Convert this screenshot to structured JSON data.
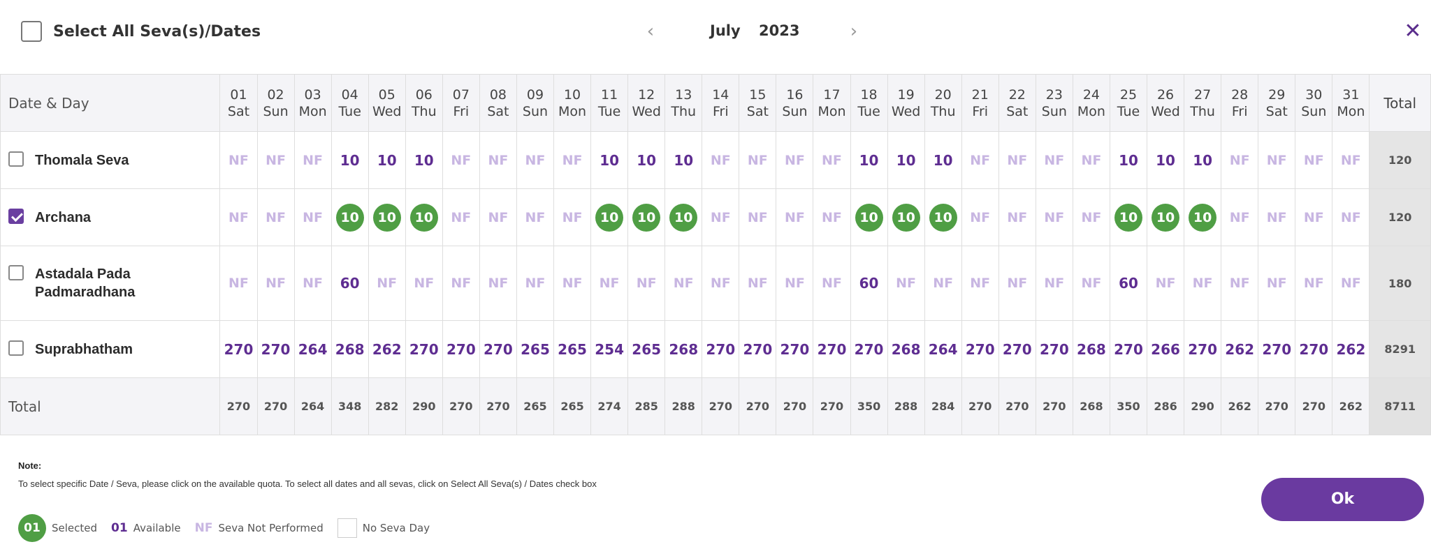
{
  "header": {
    "select_all_label": "Select All Seva(s)/Dates",
    "month": "July",
    "year": "2023",
    "prev_icon": "chevron-left-icon",
    "next_icon": "chevron-right-icon",
    "close_icon": "close-icon"
  },
  "table": {
    "date_day_header": "Date & Day",
    "total_header": "Total",
    "total_row_label": "Total",
    "days": [
      {
        "date": "01",
        "day": "Sat"
      },
      {
        "date": "02",
        "day": "Sun"
      },
      {
        "date": "03",
        "day": "Mon"
      },
      {
        "date": "04",
        "day": "Tue"
      },
      {
        "date": "05",
        "day": "Wed"
      },
      {
        "date": "06",
        "day": "Thu"
      },
      {
        "date": "07",
        "day": "Fri"
      },
      {
        "date": "08",
        "day": "Sat"
      },
      {
        "date": "09",
        "day": "Sun"
      },
      {
        "date": "10",
        "day": "Mon"
      },
      {
        "date": "11",
        "day": "Tue"
      },
      {
        "date": "12",
        "day": "Wed"
      },
      {
        "date": "13",
        "day": "Thu"
      },
      {
        "date": "14",
        "day": "Fri"
      },
      {
        "date": "15",
        "day": "Sat"
      },
      {
        "date": "16",
        "day": "Sun"
      },
      {
        "date": "17",
        "day": "Mon"
      },
      {
        "date": "18",
        "day": "Tue"
      },
      {
        "date": "19",
        "day": "Wed"
      },
      {
        "date": "20",
        "day": "Thu"
      },
      {
        "date": "21",
        "day": "Fri"
      },
      {
        "date": "22",
        "day": "Sat"
      },
      {
        "date": "23",
        "day": "Sun"
      },
      {
        "date": "24",
        "day": "Mon"
      },
      {
        "date": "25",
        "day": "Tue"
      },
      {
        "date": "26",
        "day": "Wed"
      },
      {
        "date": "27",
        "day": "Thu"
      },
      {
        "date": "28",
        "day": "Fri"
      },
      {
        "date": "29",
        "day": "Sat"
      },
      {
        "date": "30",
        "day": "Sun"
      },
      {
        "date": "31",
        "day": "Mon"
      }
    ],
    "sevas": [
      {
        "name": "Thomala Seva",
        "checked": false,
        "total": "120",
        "values": [
          "NF",
          "NF",
          "NF",
          "10",
          "10",
          "10",
          "NF",
          "NF",
          "NF",
          "NF",
          "10",
          "10",
          "10",
          "NF",
          "NF",
          "NF",
          "NF",
          "10",
          "10",
          "10",
          "NF",
          "NF",
          "NF",
          "NF",
          "10",
          "10",
          "10",
          "NF",
          "NF",
          "NF",
          "NF"
        ],
        "states": [
          "nf",
          "nf",
          "nf",
          "av",
          "av",
          "av",
          "nf",
          "nf",
          "nf",
          "nf",
          "av",
          "av",
          "av",
          "nf",
          "nf",
          "nf",
          "nf",
          "av",
          "av",
          "av",
          "nf",
          "nf",
          "nf",
          "nf",
          "av",
          "av",
          "av",
          "nf",
          "nf",
          "nf",
          "nf"
        ]
      },
      {
        "name": "Archana",
        "checked": true,
        "total": "120",
        "values": [
          "NF",
          "NF",
          "NF",
          "10",
          "10",
          "10",
          "NF",
          "NF",
          "NF",
          "NF",
          "10",
          "10",
          "10",
          "NF",
          "NF",
          "NF",
          "NF",
          "10",
          "10",
          "10",
          "NF",
          "NF",
          "NF",
          "NF",
          "10",
          "10",
          "10",
          "NF",
          "NF",
          "NF",
          "NF"
        ],
        "states": [
          "nf",
          "nf",
          "nf",
          "sel",
          "sel",
          "sel",
          "nf",
          "nf",
          "nf",
          "nf",
          "sel",
          "sel",
          "sel",
          "nf",
          "nf",
          "nf",
          "nf",
          "sel",
          "sel",
          "sel",
          "nf",
          "nf",
          "nf",
          "nf",
          "sel",
          "sel",
          "sel",
          "nf",
          "nf",
          "nf",
          "nf"
        ]
      },
      {
        "name": "Astadala Pada Padmaradhana",
        "checked": false,
        "total": "180",
        "values": [
          "NF",
          "NF",
          "NF",
          "60",
          "NF",
          "NF",
          "NF",
          "NF",
          "NF",
          "NF",
          "NF",
          "NF",
          "NF",
          "NF",
          "NF",
          "NF",
          "NF",
          "60",
          "NF",
          "NF",
          "NF",
          "NF",
          "NF",
          "NF",
          "60",
          "NF",
          "NF",
          "NF",
          "NF",
          "NF",
          "NF"
        ],
        "states": [
          "nf",
          "nf",
          "nf",
          "av",
          "nf",
          "nf",
          "nf",
          "nf",
          "nf",
          "nf",
          "nf",
          "nf",
          "nf",
          "nf",
          "nf",
          "nf",
          "nf",
          "av",
          "nf",
          "nf",
          "nf",
          "nf",
          "nf",
          "nf",
          "av",
          "nf",
          "nf",
          "nf",
          "nf",
          "nf",
          "nf"
        ]
      },
      {
        "name": "Suprabhatham",
        "checked": false,
        "total": "8291",
        "values": [
          "270",
          "270",
          "264",
          "268",
          "262",
          "270",
          "270",
          "270",
          "265",
          "265",
          "254",
          "265",
          "268",
          "270",
          "270",
          "270",
          "270",
          "270",
          "268",
          "264",
          "270",
          "270",
          "270",
          "268",
          "270",
          "266",
          "270",
          "262",
          "270",
          "270",
          "262"
        ],
        "states": [
          "av",
          "av",
          "av",
          "av",
          "av",
          "av",
          "av",
          "av",
          "av",
          "av",
          "av",
          "av",
          "av",
          "av",
          "av",
          "av",
          "av",
          "av",
          "av",
          "av",
          "av",
          "av",
          "av",
          "av",
          "av",
          "av",
          "av",
          "av",
          "av",
          "av",
          "av"
        ]
      }
    ],
    "column_totals": [
      "270",
      "270",
      "264",
      "348",
      "282",
      "290",
      "270",
      "270",
      "265",
      "265",
      "274",
      "285",
      "288",
      "270",
      "270",
      "270",
      "270",
      "350",
      "288",
      "284",
      "270",
      "270",
      "270",
      "268",
      "350",
      "286",
      "290",
      "262",
      "270",
      "270",
      "262"
    ],
    "grand_total": "8711"
  },
  "footer": {
    "note_title": "Note:",
    "note_text": "To select specific Date / Seva, please click on the available quota. To select all dates and all sevas, click on Select All Seva(s) / Dates check box",
    "ok_label": "Ok",
    "legend": {
      "selected_sample": "01",
      "selected_label": "Selected",
      "available_sample": "01",
      "available_label": "Available",
      "nf_sample": "NF",
      "nf_label": "Seva Not Performed",
      "no_seva_label": "No Seva Day"
    }
  },
  "colors": {
    "accent_purple": "#6a3aa0",
    "available_purple": "#5e2d91",
    "nf_light_purple": "#c8b6e2",
    "selected_green": "#4f9e44"
  }
}
